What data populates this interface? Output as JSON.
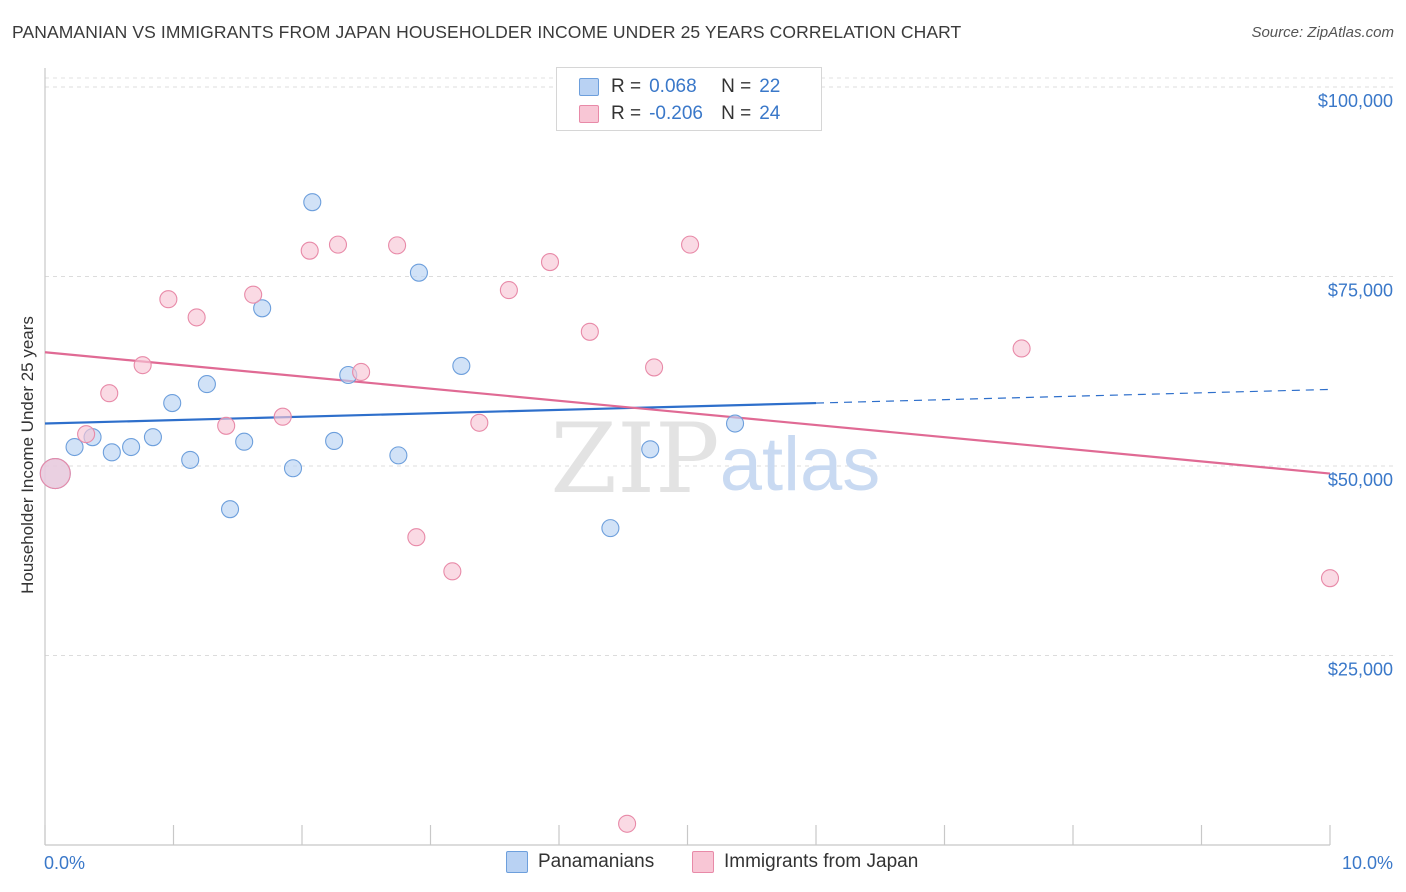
{
  "title": "PANAMANIAN VS IMMIGRANTS FROM JAPAN HOUSEHOLDER INCOME UNDER 25 YEARS CORRELATION CHART",
  "source": "Source: ZipAtlas.com",
  "watermark": {
    "zip": "ZIP",
    "atlas": "atlas"
  },
  "legend": {
    "r_label": "R =",
    "n_label": "N =",
    "rows": [
      {
        "r": "0.068",
        "n": "22"
      },
      {
        "r": "-0.206",
        "n": "24"
      }
    ]
  },
  "bottom_legend": [
    "Panamanians",
    "Immigrants from Japan"
  ],
  "colors": {
    "blue_fill": "#b9d2f3",
    "blue_stroke": "#6d9fdc",
    "blue_line": "#2e6fcb",
    "pink_fill": "#f8c6d5",
    "pink_stroke": "#e88aa8",
    "pink_line": "#e06a94",
    "axis_text": "#3a78c9"
  },
  "chart_data": {
    "type": "scatter",
    "title": "PANAMANIAN VS IMMIGRANTS FROM JAPAN HOUSEHOLDER INCOME UNDER 25 YEARS CORRELATION CHART",
    "xlabel": "",
    "ylabel": "Householder Income Under 25 years",
    "xlim": [
      0,
      10
    ],
    "ylim": [
      0,
      102500
    ],
    "x_tick_labels": [
      "0.0%",
      "10.0%"
    ],
    "y_ticks": [
      25000,
      50000,
      75000,
      100000
    ],
    "y_tick_labels": [
      "$25,000",
      "$50,000",
      "$75,000",
      "$100,000"
    ],
    "grid": true,
    "legend_position": "top-center",
    "series": [
      {
        "name": "Panamanians",
        "r": 0.068,
        "n": 22,
        "points": [
          [
            0.08,
            49000
          ],
          [
            0.23,
            52500
          ],
          [
            0.37,
            53800
          ],
          [
            0.52,
            51800
          ],
          [
            0.67,
            52500
          ],
          [
            0.84,
            53800
          ],
          [
            0.99,
            58300
          ],
          [
            1.13,
            50800
          ],
          [
            1.26,
            60800
          ],
          [
            1.44,
            44300
          ],
          [
            1.55,
            53200
          ],
          [
            1.69,
            70800
          ],
          [
            1.93,
            49700
          ],
          [
            2.08,
            84800
          ],
          [
            2.25,
            53300
          ],
          [
            2.36,
            62000
          ],
          [
            2.75,
            51400
          ],
          [
            2.91,
            75500
          ],
          [
            3.24,
            63200
          ],
          [
            4.4,
            41800
          ],
          [
            4.71,
            52200
          ],
          [
            5.37,
            55600
          ]
        ],
        "trend": {
          "x0": 0,
          "y0": 55600,
          "x1": 6.0,
          "y1": 58300,
          "dash_x1": 10.0,
          "dash_y1": 60100
        }
      },
      {
        "name": "Immigrants from Japan",
        "r": -0.206,
        "n": 24,
        "points": [
          [
            0.08,
            49000
          ],
          [
            0.32,
            54200
          ],
          [
            0.5,
            59600
          ],
          [
            0.76,
            63300
          ],
          [
            0.96,
            72000
          ],
          [
            1.18,
            69600
          ],
          [
            1.41,
            55300
          ],
          [
            1.62,
            72600
          ],
          [
            1.85,
            56500
          ],
          [
            2.06,
            78400
          ],
          [
            2.28,
            79200
          ],
          [
            2.46,
            62400
          ],
          [
            2.74,
            79100
          ],
          [
            2.89,
            40600
          ],
          [
            3.17,
            36100
          ],
          [
            3.38,
            55700
          ],
          [
            3.61,
            73200
          ],
          [
            3.93,
            76900
          ],
          [
            4.24,
            67700
          ],
          [
            4.53,
            2800
          ],
          [
            4.74,
            63000
          ],
          [
            5.02,
            79200
          ],
          [
            7.6,
            65500
          ],
          [
            10.0,
            35200
          ]
        ],
        "trend": {
          "x0": 0,
          "y0": 65000,
          "x1": 10.0,
          "y1": 49000
        }
      }
    ]
  }
}
